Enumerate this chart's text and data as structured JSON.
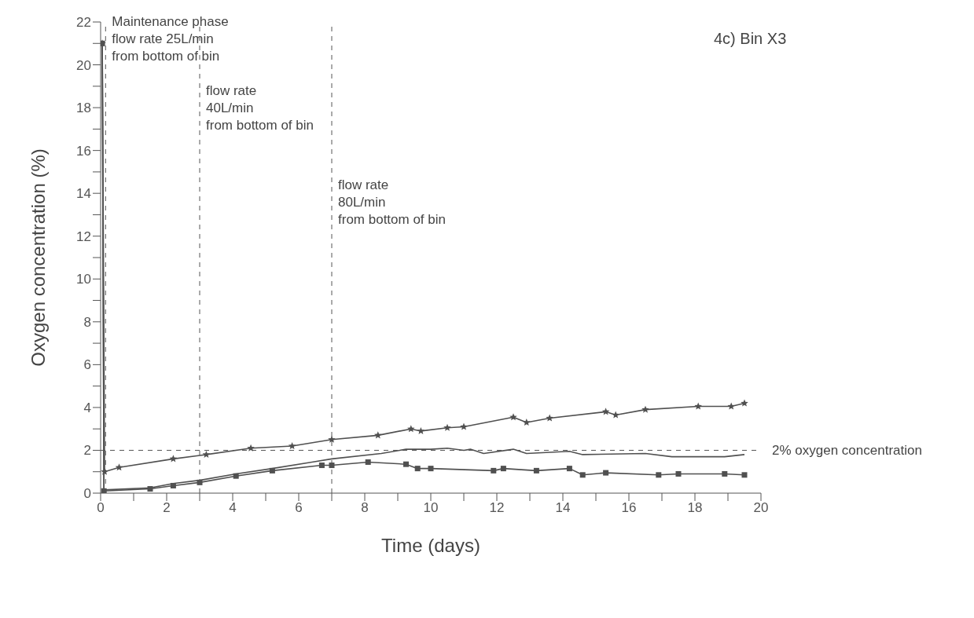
{
  "chart_data": {
    "type": "line",
    "title": "4c) Bin X3",
    "xlabel": "Time (days)",
    "ylabel": "Oxygen concentration (%)",
    "xlim": [
      0,
      20
    ],
    "ylim": [
      0,
      22
    ],
    "xticks": [
      0,
      {
        "value": 1,
        "label": null
      },
      2,
      {
        "value": 3,
        "label": null
      },
      4,
      {
        "value": 5,
        "label": null
      },
      6,
      {
        "value": 7,
        "label": null
      },
      8,
      {
        "value": 9,
        "label": null
      },
      10,
      {
        "value": 11,
        "label": null
      },
      12,
      {
        "value": 13,
        "label": null
      },
      14,
      {
        "value": 15,
        "label": null
      },
      16,
      {
        "value": 17,
        "label": null
      },
      18,
      {
        "value": 19,
        "label": null
      },
      20
    ],
    "yticks": [
      0,
      {
        "value": 1,
        "label": null
      },
      2,
      {
        "value": 3,
        "label": null
      },
      4,
      {
        "value": 5,
        "label": null
      },
      6,
      {
        "value": 7,
        "label": null
      },
      8,
      {
        "value": 9,
        "label": null
      },
      10,
      {
        "value": 11,
        "label": null
      },
      12,
      {
        "value": 13,
        "label": null
      },
      14,
      {
        "value": 15,
        "label": null
      },
      16,
      {
        "value": 17,
        "label": null
      },
      18,
      {
        "value": 19,
        "label": null
      },
      20,
      {
        "value": 21,
        "label": null
      },
      22
    ],
    "grid": false,
    "legend": false,
    "line_style": "solid",
    "series": [
      {
        "color": "#505050",
        "marker": "star",
        "x": [
          0.05,
          0.12,
          0.56,
          2.2,
          3.2,
          4.55,
          5.8,
          7.0,
          8.4,
          9.4,
          9.7,
          10.5,
          11.0,
          12.5,
          12.9,
          13.6,
          15.3,
          15.6,
          16.5,
          18.1,
          19.1,
          19.5
        ],
        "values": [
          21,
          1.0,
          1.2,
          1.6,
          1.8,
          2.1,
          2.2,
          2.5,
          2.7,
          3.0,
          2.9,
          3.05,
          3.1,
          3.55,
          3.3,
          3.5,
          3.8,
          3.65,
          3.9,
          4.05,
          4.05,
          4.2
        ]
      },
      {
        "color": "#505050",
        "marker": "none",
        "x": [
          0.05,
          0.1,
          1.5,
          2.2,
          3.0,
          4.1,
          5.2,
          6.4,
          7.0,
          8.5,
          9.25,
          10.0,
          10.5,
          11.0,
          11.2,
          11.6,
          12.5,
          12.9,
          14.2,
          14.6,
          16.5,
          17.3,
          18.9,
          19.5
        ],
        "values": [
          21,
          0.15,
          0.25,
          0.45,
          0.6,
          0.9,
          1.15,
          1.45,
          1.6,
          1.85,
          2.05,
          2.05,
          2.1,
          2.0,
          2.05,
          1.85,
          2.05,
          1.85,
          1.95,
          1.8,
          1.85,
          1.7,
          1.7,
          1.8
        ]
      },
      {
        "color": "#505050",
        "marker": "square",
        "x": [
          0.05,
          0.1,
          1.5,
          2.2,
          3.0,
          4.1,
          5.2,
          6.7,
          7.0,
          8.1,
          9.25,
          9.6,
          10.0,
          11.9,
          12.2,
          13.2,
          14.2,
          14.6,
          15.3,
          16.9,
          17.5,
          18.9,
          19.5
        ],
        "values": [
          21,
          0.1,
          0.2,
          0.35,
          0.5,
          0.8,
          1.05,
          1.3,
          1.3,
          1.45,
          1.35,
          1.15,
          1.15,
          1.05,
          1.15,
          1.05,
          1.15,
          0.85,
          0.95,
          0.85,
          0.9,
          0.9,
          0.85
        ]
      }
    ],
    "ref_lines": [
      {
        "axis": "x",
        "value": 0.15,
        "line_style": "dashed",
        "color": "#555555"
      },
      {
        "axis": "x",
        "value": 3,
        "line_style": "dashed",
        "color": "#555555"
      },
      {
        "axis": "x",
        "value": 7,
        "line_style": "dashed",
        "color": "#555555"
      },
      {
        "axis": "y",
        "value": 2,
        "label": "2% oxygen concentration",
        "line_style": "dashed",
        "color": "#555555"
      }
    ],
    "annotations": [
      {
        "text": "Maintenance phase\nflow rate 25L/min\nfrom bottom of bin",
        "x": 0.15,
        "y": 21.8
      },
      {
        "text": "flow rate\n40L/min\nfrom bottom of bin",
        "x": 3,
        "y": 18.6
      },
      {
        "text": "flow rate\n80L/min\nfrom bottom of bin",
        "x": 7,
        "y": 14.2
      }
    ]
  }
}
